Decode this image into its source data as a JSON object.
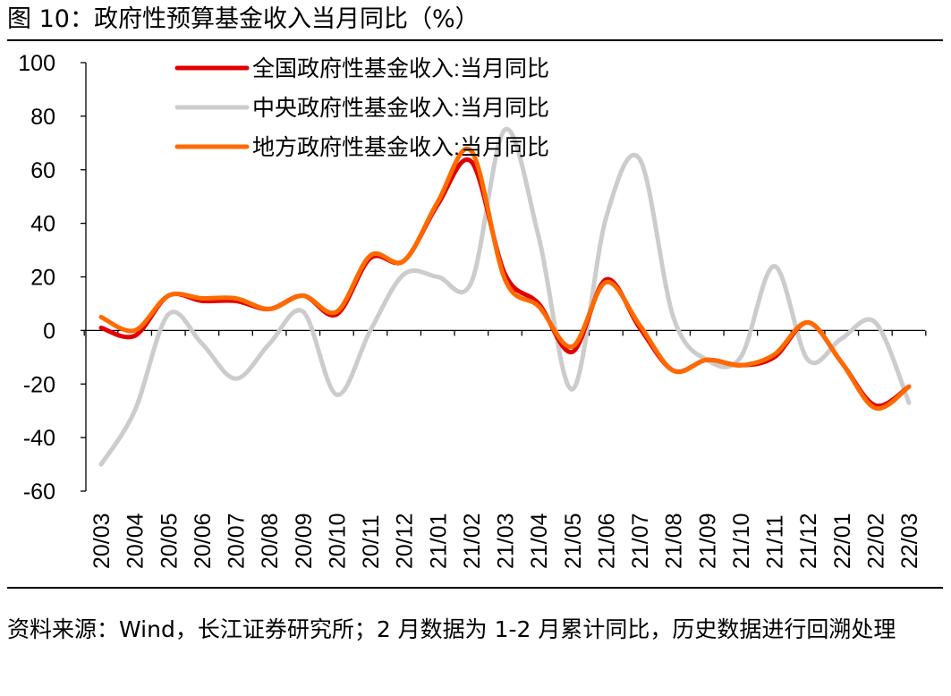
{
  "figure": {
    "title": "图 10：政府性预算基金收入当月同比（%）",
    "source_note": "资料来源：Wind，长江证券研究所；2 月数据为 1-2 月累计同比，历史数据进行回溯处理"
  },
  "colors": {
    "national": "#e00000",
    "central": "#cccccc",
    "local": "#ff6a00"
  },
  "chart_data": {
    "type": "line",
    "title": "政府性预算基金收入当月同比（%）",
    "xlabel": "",
    "ylabel": "",
    "ylim": [
      -60,
      100
    ],
    "yticks": [
      -60,
      -40,
      -20,
      0,
      20,
      40,
      60,
      80,
      100
    ],
    "grid": false,
    "legend_position": "top-left",
    "categories": [
      "20/03",
      "20/04",
      "20/05",
      "20/06",
      "20/07",
      "20/08",
      "20/09",
      "20/10",
      "20/11",
      "20/12",
      "21/01",
      "21/02",
      "21/03",
      "21/04",
      "21/05",
      "21/06",
      "21/07",
      "21/08",
      "21/09",
      "21/10",
      "21/11",
      "21/12",
      "22/01",
      "22/02",
      "22/03"
    ],
    "series": [
      {
        "name": "中央政府性基金收入:当月同比",
        "color_key": "central",
        "values": [
          -50,
          -30,
          6,
          -5,
          -18,
          -5,
          7,
          -24,
          0,
          21,
          20,
          18,
          75,
          35,
          -22,
          42,
          64,
          5,
          -11,
          -10,
          24,
          -11,
          -3,
          3,
          -27
        ]
      },
      {
        "name": "全国政府性基金收入:当月同比",
        "color_key": "national",
        "values": [
          1,
          -2,
          13,
          11,
          11,
          8,
          13,
          6,
          27,
          26,
          47,
          63,
          21,
          10,
          -8,
          19,
          1,
          -15,
          -11,
          -13,
          -10,
          3,
          -12,
          -28,
          -21
        ]
      },
      {
        "name": "地方政府性基金收入:当月同比",
        "color_key": "local",
        "values": [
          5,
          0,
          13,
          12,
          12,
          8,
          13,
          7,
          28,
          26,
          48,
          67,
          19,
          9,
          -6,
          18,
          2,
          -15,
          -11,
          -13,
          -9,
          3,
          -12,
          -29,
          -21
        ]
      }
    ],
    "legend_order": [
      1,
      0,
      2
    ]
  }
}
